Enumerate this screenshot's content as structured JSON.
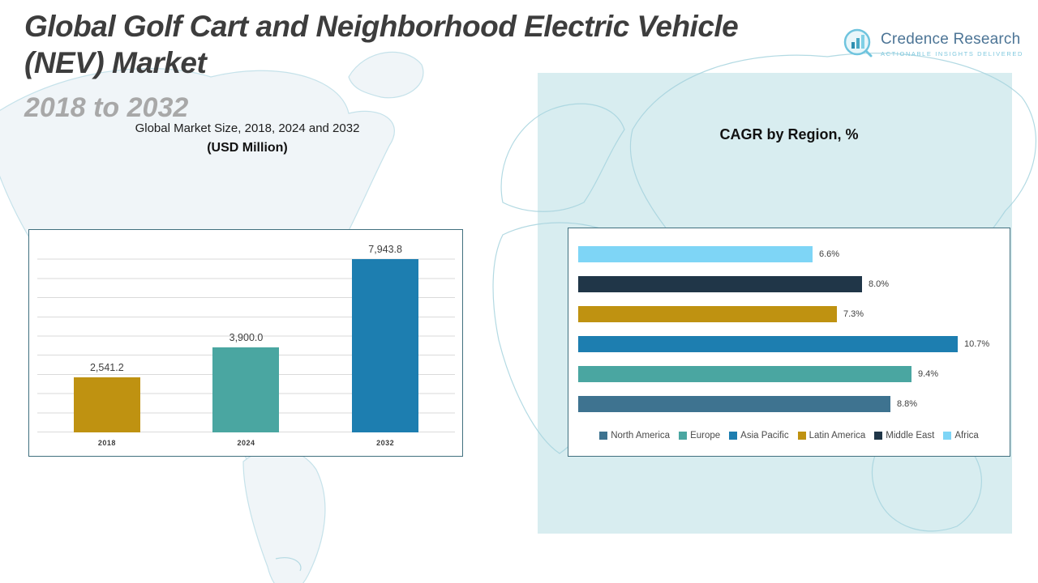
{
  "slide": {
    "title": "Global Golf Cart and Neighborhood Electric Vehicle (NEV) Market",
    "subtitle": "2018 to 2032"
  },
  "logo": {
    "name": "Credence Research",
    "tagline": "Actionable Insights Delivered",
    "icon": "bar-chart-logo-icon"
  },
  "colors": {
    "panel": "#d8edf0",
    "map_stroke": "#a6d3de",
    "gold": "#bf9211",
    "teal": "#4aa6a1",
    "blue": "#1d7eb0",
    "steel_blue": "#3e7390",
    "navy": "#203648",
    "light_blue": "#7ed5f6"
  },
  "chart_data": [
    {
      "type": "bar",
      "orientation": "vertical",
      "title": "Global Market Size, 2018, 2024 and 2032",
      "subtitle": "(USD Million)",
      "categories": [
        "2018",
        "2024",
        "2032"
      ],
      "values": [
        2541.2,
        3900.0,
        7943.8
      ],
      "value_labels": [
        "2,541.2",
        "3,900.0",
        "7,943.8"
      ],
      "colors": [
        "#bf9211",
        "#4aa6a1",
        "#1d7eb0"
      ],
      "ylim": [
        0,
        8800
      ],
      "grid": true,
      "legend_position": "none"
    },
    {
      "type": "bar",
      "orientation": "horizontal",
      "title": "CAGR by Region, %",
      "categories": [
        "North America",
        "Europe",
        "Asia Pacific",
        "Latin America",
        "Middle East",
        "Africa"
      ],
      "values": [
        8.8,
        9.4,
        10.7,
        7.3,
        8.0,
        6.6
      ],
      "value_labels": [
        "8.8%",
        "9.4%",
        "10.7%",
        "7.3%",
        "8.0%",
        "6.6%"
      ],
      "colors": [
        "#3e7390",
        "#4aa6a1",
        "#1d7eb0",
        "#bf9211",
        "#203648",
        "#7ed5f6"
      ],
      "bar_display_order_top_to_bottom": [
        "Africa",
        "Middle East",
        "Latin America",
        "Asia Pacific",
        "Europe",
        "North America"
      ],
      "xlim": [
        0,
        12
      ],
      "grid": false,
      "legend_position": "bottom"
    }
  ]
}
